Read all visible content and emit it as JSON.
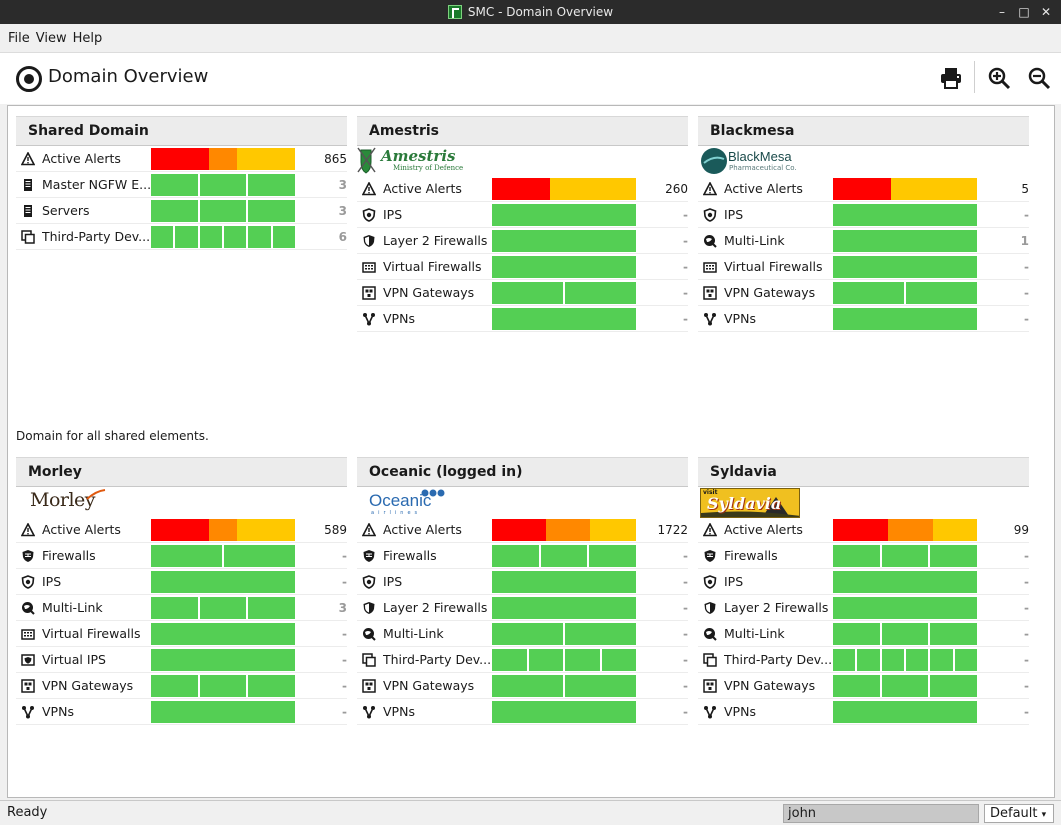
{
  "window": {
    "title": "SMC - Domain Overview"
  },
  "menu": {
    "file": "File",
    "view": "View",
    "help": "Help"
  },
  "view_title": "Domain Overview",
  "toolbar": {
    "print_icon": "printer-icon",
    "zoom_in_icon": "zoom-in-icon",
    "zoom_out_icon": "zoom-out-icon"
  },
  "colors": {
    "ok": "#54cf54",
    "critical": "#ff0000",
    "high": "#ff8800",
    "medium": "#ffc800"
  },
  "shared_description": "Domain for all shared elements.",
  "panels": [
    {
      "name": "Shared Domain",
      "logo": null,
      "rows": [
        {
          "icon": "warning",
          "label": "Active Alerts",
          "alerts": [
            [
              "critical",
              2
            ],
            [
              "high",
              1
            ],
            [
              "medium",
              2
            ]
          ],
          "count": "865"
        },
        {
          "icon": "server",
          "label": "Master NGFW E...",
          "segments": 3,
          "count": "3"
        },
        {
          "icon": "server",
          "label": "Servers",
          "segments": 3,
          "count": "3"
        },
        {
          "icon": "thirdparty",
          "label": "Third-Party Dev...",
          "segments": 6,
          "count": "6"
        }
      ]
    },
    {
      "name": "Amestris",
      "logo": {
        "type": "amestris",
        "name": "Amestris",
        "sub": "Ministry of Defence"
      },
      "rows": [
        {
          "icon": "warning",
          "label": "Active Alerts",
          "alerts": [
            [
              "critical",
              2
            ],
            [
              "medium",
              3
            ]
          ],
          "count": "260"
        },
        {
          "icon": "shield",
          "label": "IPS",
          "segments": 1,
          "count": "-"
        },
        {
          "icon": "shield-dark",
          "label": "Layer 2 Firewalls",
          "segments": 1,
          "count": "-"
        },
        {
          "icon": "grid",
          "label": "Virtual Firewalls",
          "segments": 1,
          "count": "-"
        },
        {
          "icon": "vpn",
          "label": "VPN Gateways",
          "segments": 2,
          "count": "-"
        },
        {
          "icon": "branch",
          "label": "VPNs",
          "segments": 1,
          "count": "-"
        }
      ]
    },
    {
      "name": "Blackmesa",
      "logo": {
        "type": "blackmesa",
        "name": "BlackMesa",
        "sub": "Pharmaceutical Co."
      },
      "rows": [
        {
          "icon": "warning",
          "label": "Active Alerts",
          "alerts": [
            [
              "critical",
              1
            ],
            [
              "critical",
              1
            ],
            [
              "medium",
              1
            ],
            [
              "medium",
              1
            ],
            [
              "medium",
              1
            ]
          ],
          "count": "5"
        },
        {
          "icon": "shield",
          "label": "IPS",
          "segments": 1,
          "count": "-"
        },
        {
          "icon": "globe",
          "label": "Multi-Link",
          "segments": 1,
          "count": "1"
        },
        {
          "icon": "grid",
          "label": "Virtual Firewalls",
          "segments": 1,
          "count": "-"
        },
        {
          "icon": "vpn",
          "label": "VPN Gateways",
          "segments": 2,
          "count": "-"
        },
        {
          "icon": "branch",
          "label": "VPNs",
          "segments": 1,
          "count": "-"
        }
      ]
    },
    {
      "name": "Morley",
      "logo": {
        "type": "morley",
        "name": "Morley"
      },
      "rows": [
        {
          "icon": "warning",
          "label": "Active Alerts",
          "alerts": [
            [
              "critical",
              2
            ],
            [
              "high",
              1
            ],
            [
              "medium",
              2
            ]
          ],
          "count": "589"
        },
        {
          "icon": "firewall",
          "label": "Firewalls",
          "segments": 2,
          "count": "-"
        },
        {
          "icon": "shield",
          "label": "IPS",
          "segments": 1,
          "count": "-"
        },
        {
          "icon": "globe",
          "label": "Multi-Link",
          "segments": 3,
          "count": "3"
        },
        {
          "icon": "grid",
          "label": "Virtual Firewalls",
          "segments": 1,
          "count": "-"
        },
        {
          "icon": "virtualips",
          "label": "Virtual IPS",
          "segments": 1,
          "count": "-"
        },
        {
          "icon": "vpn",
          "label": "VPN Gateways",
          "segments": 3,
          "count": "-"
        },
        {
          "icon": "branch",
          "label": "VPNs",
          "segments": 1,
          "count": "-"
        }
      ]
    },
    {
      "name": "Oceanic (logged in)",
      "logo": {
        "type": "oceanic",
        "name": "Oceanic",
        "sub": "airlines"
      },
      "rows": [
        {
          "icon": "warning",
          "label": "Active Alerts",
          "alerts": [
            [
              "critical",
              2
            ],
            [
              "high",
              1.6
            ],
            [
              "medium",
              1.7
            ]
          ],
          "count": "1722"
        },
        {
          "icon": "firewall",
          "label": "Firewalls",
          "segments": 3,
          "count": "-"
        },
        {
          "icon": "shield",
          "label": "IPS",
          "segments": 1,
          "count": "-"
        },
        {
          "icon": "shield-dark",
          "label": "Layer 2 Firewalls",
          "segments": 1,
          "count": "-"
        },
        {
          "icon": "globe",
          "label": "Multi-Link",
          "segments": 2,
          "count": "-"
        },
        {
          "icon": "thirdparty",
          "label": "Third-Party Dev...",
          "segments": 4,
          "count": "-"
        },
        {
          "icon": "vpn",
          "label": "VPN Gateways",
          "segments": 2,
          "count": "-"
        },
        {
          "icon": "branch",
          "label": "VPNs",
          "segments": 1,
          "count": "-"
        }
      ]
    },
    {
      "name": "Syldavia",
      "logo": {
        "type": "syldavia",
        "name": "Syldavia",
        "sub": "visit"
      },
      "rows": [
        {
          "icon": "warning",
          "label": "Active Alerts",
          "alerts": [
            [
              "critical",
              2
            ],
            [
              "high",
              1.6
            ],
            [
              "medium",
              1.6
            ]
          ],
          "count": "99"
        },
        {
          "icon": "firewall",
          "label": "Firewalls",
          "segments": 3,
          "count": "-"
        },
        {
          "icon": "shield",
          "label": "IPS",
          "segments": 1,
          "count": "-"
        },
        {
          "icon": "shield-dark",
          "label": "Layer 2 Firewalls",
          "segments": 1,
          "count": "-"
        },
        {
          "icon": "globe",
          "label": "Multi-Link",
          "segments": 3,
          "count": "-"
        },
        {
          "icon": "thirdparty",
          "label": "Third-Party Dev...",
          "segments": 6,
          "count": "-"
        },
        {
          "icon": "vpn",
          "label": "VPN Gateways",
          "segments": 3,
          "count": "-"
        },
        {
          "icon": "branch",
          "label": "VPNs",
          "segments": 1,
          "count": "-"
        }
      ]
    }
  ],
  "status": {
    "text": "Ready",
    "user": "john",
    "profile": "Default"
  }
}
